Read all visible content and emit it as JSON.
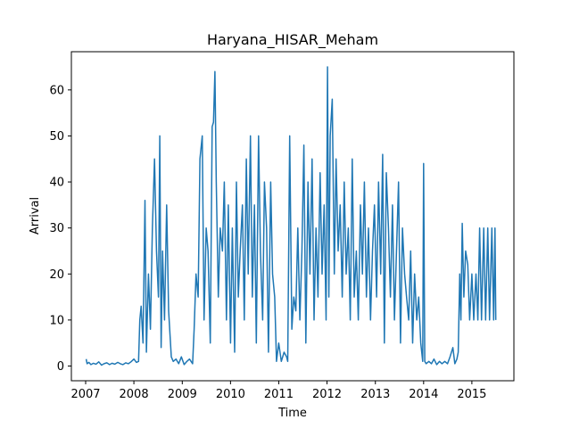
{
  "chart_data": {
    "type": "line",
    "title": "Haryana_HISAR_Meham",
    "xlabel": "Time",
    "ylabel": "Arrival",
    "xlim": [
      "2006-09-15",
      "2015-11-15"
    ],
    "ylim": [
      -3.2,
      68.3
    ],
    "x_ticks": [
      "2007",
      "2008",
      "2009",
      "2010",
      "2011",
      "2012",
      "2013",
      "2014",
      "2015"
    ],
    "x_tick_dates": [
      "2007-01-01",
      "2008-01-01",
      "2009-01-01",
      "2010-01-01",
      "2011-01-01",
      "2012-01-01",
      "2013-01-01",
      "2014-01-01",
      "2015-01-01"
    ],
    "y_ticks": [
      "0",
      "10",
      "20",
      "30",
      "40",
      "50",
      "60"
    ],
    "y_tick_values": [
      0,
      10,
      20,
      30,
      40,
      50,
      60
    ],
    "grid": false,
    "legend": "none",
    "line_color": "#1f77b4",
    "series": [
      {
        "x": [
          "2007-01-05",
          "2007-01-12",
          "2007-01-25",
          "2007-02-10",
          "2007-03-01",
          "2007-03-20",
          "2007-04-10",
          "2007-05-01",
          "2007-05-20",
          "2007-06-10",
          "2007-07-01",
          "2007-07-20",
          "2007-08-10",
          "2007-09-01",
          "2007-09-20",
          "2007-10-10",
          "2007-11-01",
          "2007-11-20",
          "2007-12-10",
          "2008-01-01",
          "2008-01-20",
          "2008-02-05",
          "2008-02-15",
          "2008-02-25",
          "2008-03-10",
          "2008-03-25",
          "2008-04-05",
          "2008-04-20",
          "2008-05-05",
          "2008-05-20",
          "2008-06-05",
          "2008-06-20",
          "2008-07-05",
          "2008-07-15",
          "2008-07-25",
          "2008-08-05",
          "2008-08-20",
          "2008-09-05",
          "2008-09-20",
          "2008-10-10",
          "2008-10-25",
          "2008-11-15",
          "2008-12-05",
          "2008-12-25",
          "2009-01-15",
          "2009-02-05",
          "2009-02-25",
          "2009-03-20",
          "2009-04-01",
          "2009-04-15",
          "2009-05-01",
          "2009-05-15",
          "2009-06-01",
          "2009-06-15",
          "2009-07-01",
          "2009-07-15",
          "2009-08-01",
          "2009-08-15",
          "2009-08-25",
          "2009-09-05",
          "2009-09-15",
          "2009-10-01",
          "2009-10-15",
          "2009-11-01",
          "2009-11-15",
          "2009-12-01",
          "2009-12-15",
          "2010-01-01",
          "2010-01-15",
          "2010-02-01",
          "2010-02-15",
          "2010-03-01",
          "2010-03-15",
          "2010-04-01",
          "2010-04-15",
          "2010-05-01",
          "2010-05-15",
          "2010-06-01",
          "2010-06-15",
          "2010-07-01",
          "2010-07-15",
          "2010-08-01",
          "2010-08-15",
          "2010-09-01",
          "2010-09-15",
          "2010-10-01",
          "2010-10-15",
          "2010-11-01",
          "2010-11-15",
          "2010-12-01",
          "2010-12-15",
          "2011-01-01",
          "2011-01-20",
          "2011-02-10",
          "2011-03-01",
          "2011-03-10",
          "2011-03-25",
          "2011-04-10",
          "2011-04-25",
          "2011-05-10",
          "2011-05-25",
          "2011-06-10",
          "2011-06-25",
          "2011-07-10",
          "2011-07-25",
          "2011-08-10",
          "2011-08-25",
          "2011-09-10",
          "2011-09-25",
          "2011-10-10",
          "2011-10-25",
          "2011-11-10",
          "2011-11-25",
          "2011-12-10",
          "2011-12-25",
          "2012-01-05",
          "2012-01-15",
          "2012-01-25",
          "2012-02-10",
          "2012-02-25",
          "2012-03-10",
          "2012-03-25",
          "2012-04-10",
          "2012-04-25",
          "2012-05-10",
          "2012-05-25",
          "2012-06-10",
          "2012-06-25",
          "2012-07-10",
          "2012-07-25",
          "2012-08-10",
          "2012-08-25",
          "2012-09-10",
          "2012-09-25",
          "2012-10-10",
          "2012-10-25",
          "2012-11-10",
          "2012-11-25",
          "2012-12-10",
          "2012-12-25",
          "2013-01-10",
          "2013-01-25",
          "2013-02-10",
          "2013-02-25",
          "2013-03-10",
          "2013-03-25",
          "2013-04-10",
          "2013-04-25",
          "2013-05-10",
          "2013-05-25",
          "2013-06-10",
          "2013-06-25",
          "2013-07-10",
          "2013-07-25",
          "2013-08-10",
          "2013-08-25",
          "2013-09-10",
          "2013-09-25",
          "2013-10-10",
          "2013-10-25",
          "2013-11-10",
          "2013-11-25",
          "2013-12-10",
          "2013-12-25",
          "2014-01-01",
          "2014-01-10",
          "2014-01-20",
          "2014-02-10",
          "2014-03-01",
          "2014-03-20",
          "2014-04-10",
          "2014-05-01",
          "2014-05-20",
          "2014-06-10",
          "2014-07-01",
          "2014-07-20",
          "2014-08-10",
          "2014-08-25",
          "2014-09-10",
          "2014-09-20",
          "2014-10-01",
          "2014-10-10",
          "2014-10-20",
          "2014-11-01",
          "2014-11-15",
          "2014-12-01",
          "2014-12-15",
          "2015-01-01",
          "2015-01-15",
          "2015-02-01",
          "2015-02-15",
          "2015-03-01",
          "2015-03-15",
          "2015-04-01",
          "2015-04-15",
          "2015-05-01",
          "2015-05-15",
          "2015-06-01",
          "2015-06-15",
          "2015-06-25",
          "2015-07-01"
        ],
        "y": [
          1.5,
          0.5,
          0.8,
          0.3,
          0.6,
          0.4,
          0.9,
          0.2,
          0.5,
          0.7,
          0.3,
          0.6,
          0.4,
          0.8,
          0.5,
          0.3,
          0.7,
          0.5,
          0.9,
          1.5,
          0.8,
          1.0,
          10,
          13,
          5,
          36,
          3,
          20,
          8,
          30,
          45,
          25,
          15,
          50,
          4,
          25,
          10,
          35,
          12,
          2,
          1.0,
          1.5,
          0.5,
          2.0,
          0.3,
          1.0,
          1.5,
          0.5,
          8,
          20,
          15,
          45,
          50,
          10,
          30,
          25,
          5,
          52,
          53,
          64,
          40,
          15,
          30,
          25,
          40,
          10,
          35,
          5,
          30,
          3,
          40,
          15,
          25,
          35,
          10,
          45,
          20,
          50,
          15,
          35,
          5,
          50,
          25,
          10,
          40,
          30,
          3,
          40,
          20,
          15,
          1,
          5,
          1,
          3,
          2,
          1,
          50,
          8,
          15,
          12,
          30,
          10,
          25,
          48,
          5,
          40,
          20,
          45,
          10,
          30,
          15,
          42,
          20,
          35,
          10,
          65,
          15,
          50,
          58,
          20,
          45,
          25,
          35,
          15,
          40,
          20,
          30,
          10,
          45,
          15,
          25,
          10,
          35,
          20,
          40,
          15,
          30,
          10,
          25,
          35,
          15,
          40,
          20,
          46,
          5,
          42,
          30,
          15,
          35,
          10,
          25,
          40,
          5,
          30,
          20,
          15,
          10,
          25,
          5,
          20,
          10,
          15,
          5,
          1,
          44,
          1,
          0.5,
          1,
          0.5,
          1.5,
          0.3,
          1,
          0.5,
          1,
          0.5,
          2,
          4,
          0.5,
          1.5,
          3,
          20,
          10,
          31,
          15,
          25,
          22,
          10,
          20,
          10,
          20,
          10,
          30,
          10,
          30,
          10,
          30,
          10,
          30,
          10,
          30,
          10
        ]
      }
    ]
  }
}
